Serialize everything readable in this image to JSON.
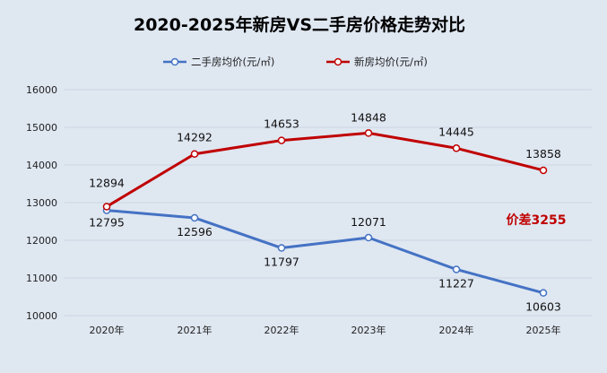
{
  "chart_data": {
    "type": "line",
    "title": "2020-2025年新房VS二手房价格走势对比",
    "categories": [
      "2020年",
      "2021年",
      "2022年",
      "2023年",
      "2024年",
      "2025年"
    ],
    "ylim": [
      10000,
      16000
    ],
    "yticks": [
      10000,
      11000,
      12000,
      13000,
      14000,
      15000,
      16000
    ],
    "grid": true,
    "legend_position": "top-center",
    "series": [
      {
        "name": "二手房均价(元/㎡)",
        "color": "#4472c4",
        "values": [
          12795,
          12596,
          11797,
          12071,
          11227,
          10603
        ]
      },
      {
        "name": "新房均价(元/㎡)",
        "color": "#c00000",
        "values": [
          12894,
          14292,
          14653,
          14848,
          14445,
          13858
        ]
      }
    ],
    "annotations": [
      {
        "text": "价差3255",
        "color": "#c00000"
      }
    ]
  }
}
